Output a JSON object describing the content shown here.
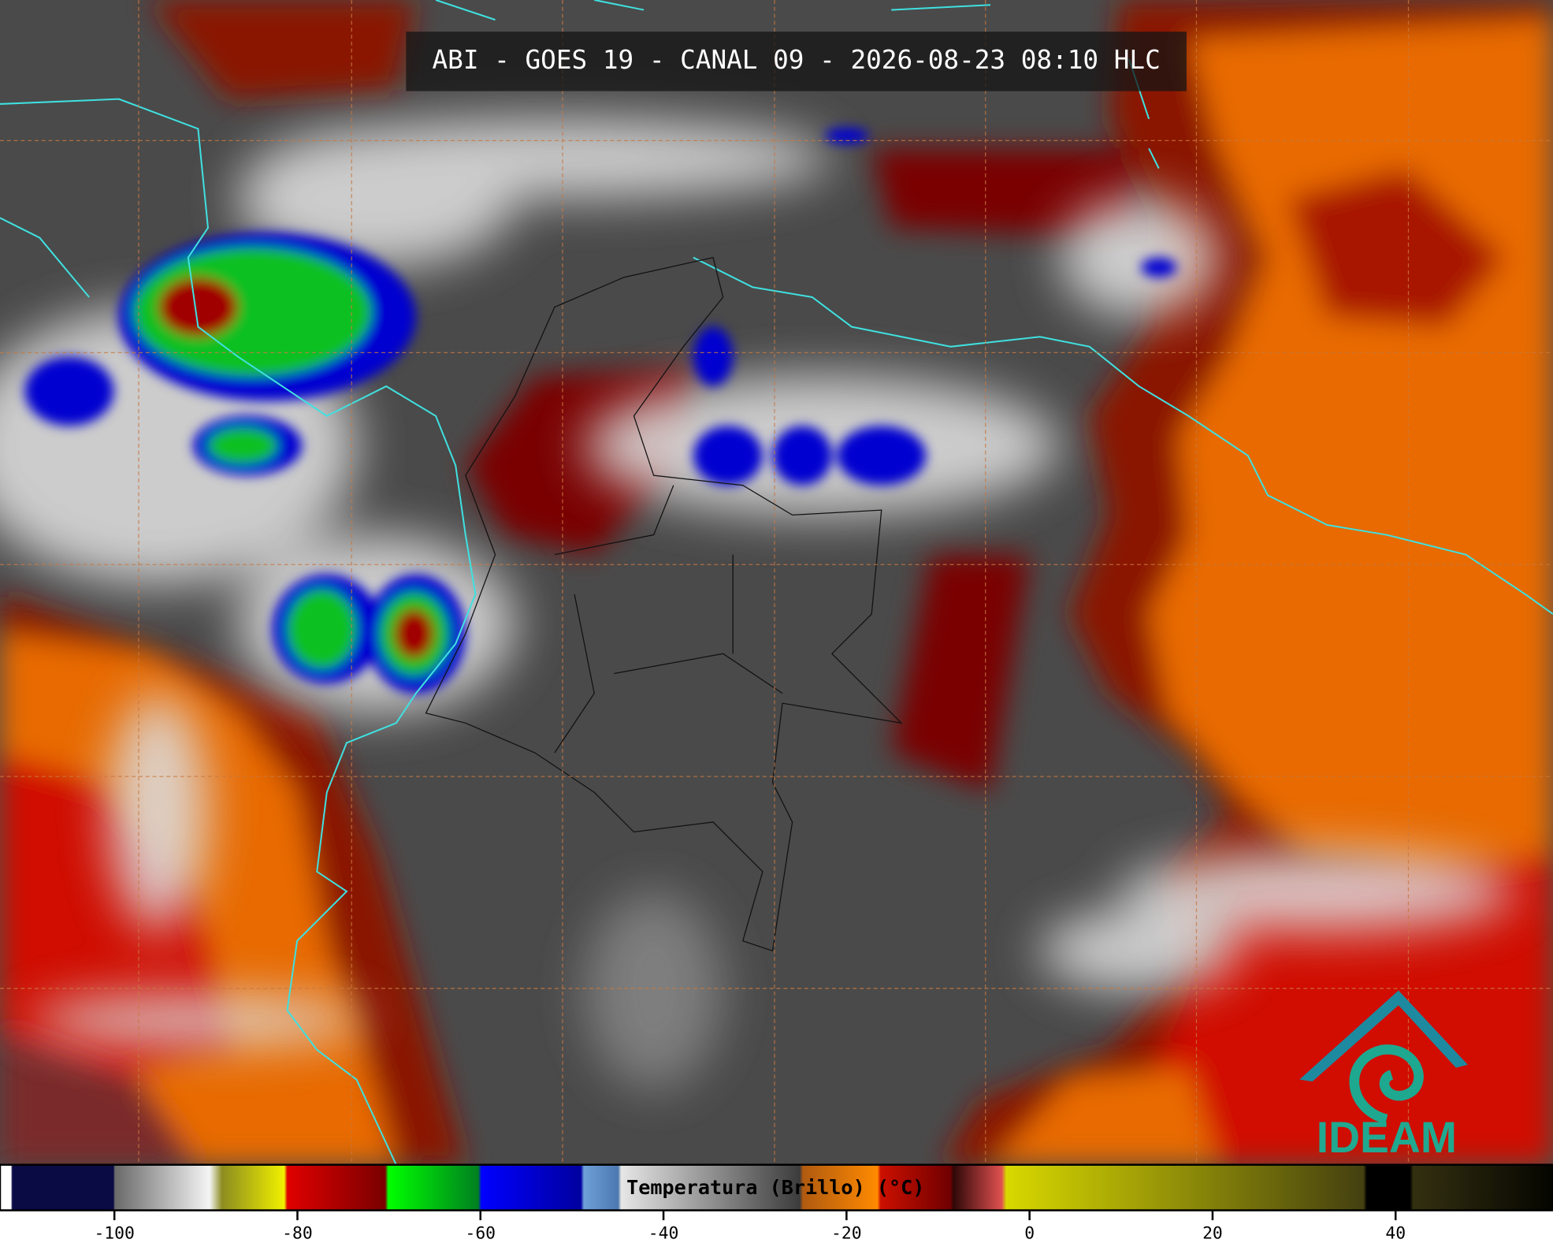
{
  "header": {
    "title": "ABI - GOES 19 - CANAL 09 - 2026-08-23 08:10 HLC"
  },
  "colorbar": {
    "label": "Temperatura (Brillo) (°C)",
    "xlim": [
      -112.5,
      57.2
    ],
    "xticks": [
      -100,
      -80,
      -60,
      -40,
      -20,
      0,
      20,
      40
    ]
  },
  "logo": {
    "text": "IDEAM"
  }
}
